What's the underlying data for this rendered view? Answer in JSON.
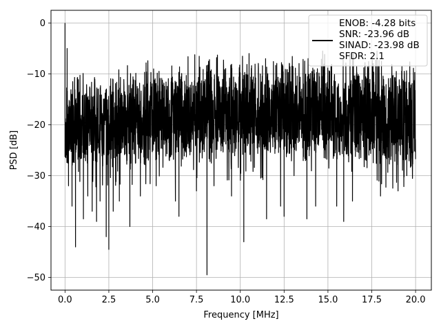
{
  "chart_data": {
    "type": "line",
    "xlabel": "Frequency [MHz]",
    "ylabel": "PSD [dB]",
    "xlim": [
      -0.8,
      20.9
    ],
    "ylim": [
      -52.5,
      2.5
    ],
    "x_ticks": [
      0.0,
      2.5,
      5.0,
      7.5,
      10.0,
      12.5,
      15.0,
      17.5,
      20.0
    ],
    "x_tick_labels": [
      "0.0",
      "2.5",
      "5.0",
      "7.5",
      "10.0",
      "12.5",
      "15.0",
      "17.5",
      "20.0"
    ],
    "y_ticks": [
      0,
      -10,
      -20,
      -30,
      -40,
      -50
    ],
    "y_tick_labels": [
      "0",
      "−10",
      "−20",
      "−30",
      "−40",
      "−50"
    ],
    "grid": true,
    "legend": {
      "placement": "top-right",
      "entries": [
        "ENOB: -4.28 bits",
        "SNR: -23.96 dB",
        "SINAD: -23.98 dB",
        "SFDR: 2.1"
      ]
    },
    "series": [
      {
        "color": "#000000",
        "x_range": [
          0.0,
          20.0
        ],
        "level_envelope": {
          "x": [
            0.0,
            2.5,
            5.0,
            7.5,
            10.0,
            12.5,
            15.0,
            17.5,
            20.0
          ],
          "typical_top_db": [
            -11,
            -12,
            -10,
            -9,
            -9,
            -9,
            -9,
            -9,
            -10
          ],
          "typical_bottom_db": [
            -27,
            -26,
            -26,
            -25,
            -25,
            -25,
            -25,
            -26,
            -27
          ]
        },
        "points": [
          {
            "x": 0.0,
            "y": 0.0
          },
          {
            "x": 0.05,
            "y": -21
          },
          {
            "x": 0.12,
            "y": -5
          },
          {
            "x": 0.2,
            "y": -32
          },
          {
            "x": 0.4,
            "y": -36
          },
          {
            "x": 0.6,
            "y": -44
          },
          {
            "x": 1.05,
            "y": -38.5
          },
          {
            "x": 1.3,
            "y": -34
          },
          {
            "x": 1.55,
            "y": -37
          },
          {
            "x": 1.8,
            "y": -39
          },
          {
            "x": 2.0,
            "y": -35
          },
          {
            "x": 2.35,
            "y": -42
          },
          {
            "x": 2.5,
            "y": -44.5
          },
          {
            "x": 2.75,
            "y": -37
          },
          {
            "x": 3.1,
            "y": -35
          },
          {
            "x": 3.7,
            "y": -40
          },
          {
            "x": 4.3,
            "y": -34
          },
          {
            "x": 5.2,
            "y": -32
          },
          {
            "x": 6.3,
            "y": -35
          },
          {
            "x": 6.5,
            "y": -38
          },
          {
            "x": 7.5,
            "y": -33
          },
          {
            "x": 8.1,
            "y": -49.5
          },
          {
            "x": 8.5,
            "y": -32
          },
          {
            "x": 9.5,
            "y": -34
          },
          {
            "x": 10.2,
            "y": -43
          },
          {
            "x": 11.5,
            "y": -38.5
          },
          {
            "x": 12.3,
            "y": -36
          },
          {
            "x": 12.5,
            "y": -38
          },
          {
            "x": 13.8,
            "y": -38.5
          },
          {
            "x": 14.3,
            "y": -36
          },
          {
            "x": 15.5,
            "y": -36
          },
          {
            "x": 15.9,
            "y": -39
          },
          {
            "x": 16.4,
            "y": -35
          },
          {
            "x": 18.0,
            "y": -34
          },
          {
            "x": 19.0,
            "y": -33
          },
          {
            "x": 19.5,
            "y": -30
          },
          {
            "x": 10.5,
            "y": -6
          },
          {
            "x": 14.7,
            "y": -5.5
          },
          {
            "x": 17.8,
            "y": -5.5
          }
        ]
      }
    ]
  }
}
